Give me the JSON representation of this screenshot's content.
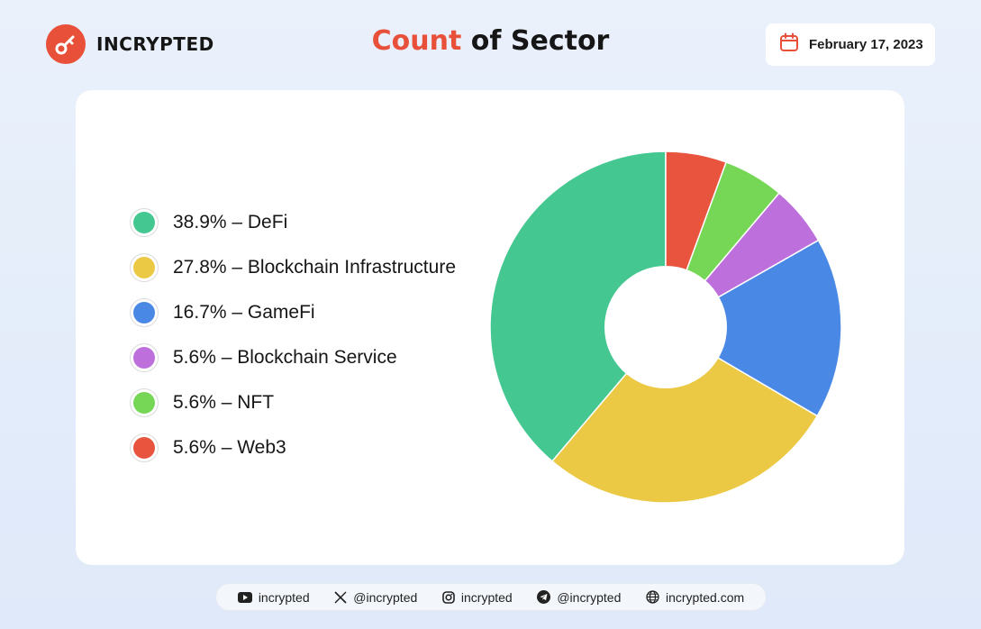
{
  "brand": {
    "name": "INCRYPTED",
    "color": "#e8503a",
    "icon": "key-icon"
  },
  "title": {
    "accent": "Count",
    "rest": " of Sector"
  },
  "date": {
    "text": "February 17, 2023",
    "icon": "calendar-icon"
  },
  "legend": [
    {
      "label": "38.9% – DeFi",
      "color": "#44c791"
    },
    {
      "label": "27.8% – Blockchain Infrastructure",
      "color": "#ebc944"
    },
    {
      "label": "16.7% – GameFi",
      "color": "#4a88e6"
    },
    {
      "label": "5.6% – Blockchain Service",
      "color": "#bd6fdb"
    },
    {
      "label": "5.6% – NFT",
      "color": "#76d757"
    },
    {
      "label": "5.6% – Web3",
      "color": "#e9543f"
    }
  ],
  "chart_data": {
    "type": "pie",
    "title": "Count of Sector",
    "donut": true,
    "categories": [
      "DeFi",
      "Blockchain Infrastructure",
      "GameFi",
      "Blockchain Service",
      "NFT",
      "Web3"
    ],
    "values": [
      38.9,
      27.8,
      16.7,
      5.6,
      5.6,
      5.6
    ],
    "colors": [
      "#44c791",
      "#ebc944",
      "#4a88e6",
      "#bd6fdb",
      "#76d757",
      "#e9543f"
    ],
    "legend_position": "left"
  },
  "footer": [
    {
      "icon": "youtube-icon",
      "text": "incrypted"
    },
    {
      "icon": "x-icon",
      "text": "@incrypted"
    },
    {
      "icon": "instagram-icon",
      "text": "incrypted"
    },
    {
      "icon": "telegram-icon",
      "text": "@incrypted"
    },
    {
      "icon": "globe-icon",
      "text": "incrypted.com"
    }
  ]
}
